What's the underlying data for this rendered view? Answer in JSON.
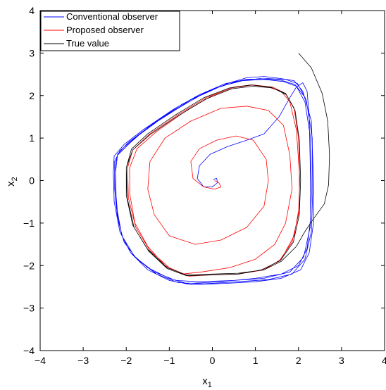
{
  "chart_data": {
    "type": "line",
    "xlabel": "x",
    "xlabel_sub": "1",
    "ylabel": "x",
    "ylabel_sub": "2",
    "xlim": [
      -4,
      4
    ],
    "ylim": [
      -4,
      4
    ],
    "xticks": [
      -4,
      -3,
      -2,
      -1,
      0,
      1,
      2,
      3,
      4
    ],
    "yticks": [
      -4,
      -3,
      -2,
      -1,
      0,
      1,
      2,
      3,
      4
    ],
    "grid": false,
    "legend_position": "top-left",
    "series": [
      {
        "name": "Conventional observer",
        "color": "#0000ff",
        "segments": [
          [
            [
              0.02,
              0.03
            ],
            [
              0.1,
              0.05
            ],
            [
              0.12,
              -0.05
            ],
            [
              0.0,
              -0.15
            ],
            [
              -0.2,
              -0.15
            ],
            [
              -0.35,
              0.05
            ],
            [
              -0.3,
              0.35
            ],
            [
              -0.05,
              0.62
            ],
            [
              0.35,
              0.8
            ],
            [
              0.8,
              0.95
            ],
            [
              1.2,
              1.1
            ],
            [
              1.55,
              1.5
            ],
            [
              1.8,
              1.95
            ],
            [
              1.95,
              2.2
            ],
            [
              2.1,
              2.3
            ],
            [
              2.2,
              2.1
            ],
            [
              2.25,
              1.5
            ],
            [
              2.28,
              0.0
            ],
            [
              2.28,
              -0.9
            ],
            [
              2.2,
              -1.6
            ],
            [
              2.0,
              -2.0
            ],
            [
              1.6,
              -2.2
            ],
            [
              1.0,
              -2.3
            ],
            [
              0.5,
              -2.35
            ],
            [
              -0.1,
              -2.4
            ],
            [
              -0.6,
              -2.42
            ],
            [
              -1.0,
              -2.3
            ],
            [
              -1.5,
              -2.05
            ],
            [
              -1.9,
              -1.7
            ],
            [
              -2.1,
              -1.3
            ],
            [
              -2.2,
              -0.8
            ],
            [
              -2.25,
              -0.2
            ],
            [
              -2.25,
              0.4
            ],
            [
              -2.2,
              0.6
            ],
            [
              -1.9,
              0.9
            ],
            [
              -1.5,
              1.25
            ],
            [
              -0.8,
              1.7
            ],
            [
              -0.2,
              2.05
            ],
            [
              0.4,
              2.3
            ],
            [
              0.8,
              2.42
            ],
            [
              1.2,
              2.45
            ],
            [
              1.6,
              2.4
            ],
            [
              1.9,
              2.35
            ],
            [
              2.1,
              2.1
            ],
            [
              2.3,
              1.4
            ],
            [
              2.35,
              0.0
            ],
            [
              2.35,
              -1.0
            ],
            [
              2.25,
              -1.7
            ],
            [
              2.05,
              -2.1
            ],
            [
              1.6,
              -2.3
            ],
            [
              1.0,
              -2.38
            ],
            [
              0.3,
              -2.42
            ],
            [
              -0.5,
              -2.45
            ],
            [
              -1.0,
              -2.35
            ],
            [
              -1.5,
              -2.1
            ],
            [
              -1.9,
              -1.7
            ],
            [
              -2.15,
              -1.2
            ],
            [
              -2.28,
              -0.5
            ],
            [
              -2.3,
              0.2
            ],
            [
              -2.28,
              0.58
            ],
            [
              -2.05,
              0.85
            ],
            [
              -1.6,
              1.2
            ],
            [
              -0.9,
              1.68
            ],
            [
              -0.3,
              2.02
            ],
            [
              0.3,
              2.28
            ],
            [
              0.8,
              2.38
            ],
            [
              1.3,
              2.4
            ],
            [
              1.7,
              2.38
            ],
            [
              1.98,
              2.28
            ],
            [
              2.18,
              1.9
            ],
            [
              2.32,
              1.0
            ],
            [
              2.33,
              -0.3
            ],
            [
              2.3,
              -1.2
            ],
            [
              2.15,
              -1.85
            ],
            [
              1.85,
              -2.2
            ],
            [
              1.3,
              -2.33
            ],
            [
              0.6,
              -2.38
            ],
            [
              -0.2,
              -2.43
            ],
            [
              -0.8,
              -2.4
            ],
            [
              -1.3,
              -2.2
            ],
            [
              -1.75,
              -1.85
            ],
            [
              -2.05,
              -1.45
            ],
            [
              -2.2,
              -0.9
            ],
            [
              -2.27,
              -0.2
            ],
            [
              -2.27,
              0.45
            ],
            [
              -2.15,
              0.7
            ],
            [
              -1.8,
              1.0
            ],
            [
              -1.2,
              1.45
            ],
            [
              -0.5,
              1.9
            ],
            [
              0.2,
              2.22
            ],
            [
              0.7,
              2.35
            ],
            [
              1.2,
              2.38
            ],
            [
              1.65,
              2.33
            ],
            [
              1.95,
              2.22
            ],
            [
              2.15,
              1.85
            ],
            [
              2.28,
              1.0
            ],
            [
              2.3,
              -0.3
            ],
            [
              2.27,
              -1.1
            ],
            [
              2.12,
              -1.8
            ],
            [
              1.8,
              -2.15
            ],
            [
              1.2,
              -2.3
            ],
            [
              0.5,
              -2.35
            ],
            [
              -0.3,
              -2.38
            ],
            [
              -0.85,
              -2.35
            ],
            [
              -1.35,
              -2.15
            ],
            [
              -1.8,
              -1.8
            ],
            [
              -2.1,
              -1.3
            ],
            [
              -2.23,
              -0.6
            ],
            [
              -2.25,
              0.2
            ],
            [
              -2.2,
              0.62
            ],
            [
              -1.95,
              0.9
            ],
            [
              -1.4,
              1.32
            ],
            [
              -0.7,
              1.8
            ],
            [
              0.0,
              2.15
            ],
            [
              0.6,
              2.34
            ],
            [
              1.1,
              2.4
            ],
            [
              1.6,
              2.36
            ],
            [
              1.92,
              2.26
            ],
            [
              2.12,
              2.0
            ]
          ]
        ]
      },
      {
        "name": "Proposed observer",
        "color": "#ff0000",
        "segments": [
          [
            [
              0.05,
              0.0
            ],
            [
              0.15,
              -0.05
            ],
            [
              0.2,
              -0.15
            ],
            [
              0.05,
              -0.2
            ],
            [
              -0.2,
              -0.15
            ],
            [
              -0.45,
              0.05
            ],
            [
              -0.5,
              0.45
            ],
            [
              -0.3,
              0.75
            ],
            [
              0.1,
              0.95
            ],
            [
              0.55,
              1.05
            ],
            [
              0.95,
              0.95
            ],
            [
              1.25,
              0.5
            ],
            [
              1.3,
              0.0
            ],
            [
              1.2,
              -0.6
            ],
            [
              0.8,
              -1.1
            ],
            [
              0.2,
              -1.4
            ],
            [
              -0.4,
              -1.5
            ],
            [
              -1.0,
              -1.3
            ],
            [
              -1.35,
              -0.8
            ],
            [
              -1.5,
              -0.2
            ],
            [
              -1.45,
              0.45
            ],
            [
              -1.1,
              1.0
            ],
            [
              -0.5,
              1.4
            ],
            [
              0.2,
              1.7
            ],
            [
              0.8,
              1.75
            ],
            [
              1.3,
              1.65
            ],
            [
              1.65,
              1.3
            ],
            [
              1.8,
              0.6
            ],
            [
              1.85,
              -0.2
            ],
            [
              1.7,
              -1.0
            ],
            [
              1.45,
              -1.5
            ],
            [
              1.0,
              -1.85
            ],
            [
              0.4,
              -2.05
            ],
            [
              -0.25,
              -2.15
            ],
            [
              -0.7,
              -2.2
            ],
            [
              -1.1,
              -2.0
            ],
            [
              -1.5,
              -1.55
            ],
            [
              -1.8,
              -1.0
            ],
            [
              -1.92,
              -0.3
            ],
            [
              -1.92,
              0.3
            ],
            [
              -1.75,
              0.75
            ],
            [
              -1.3,
              1.15
            ],
            [
              -0.6,
              1.65
            ],
            [
              0.0,
              2.0
            ],
            [
              0.5,
              2.2
            ],
            [
              0.9,
              2.25
            ],
            [
              1.3,
              2.2
            ],
            [
              1.6,
              2.1
            ],
            [
              1.8,
              1.85
            ],
            [
              1.95,
              1.2
            ],
            [
              2.02,
              0.2
            ],
            [
              2.02,
              -0.6
            ],
            [
              1.9,
              -1.3
            ],
            [
              1.6,
              -1.85
            ],
            [
              1.2,
              -2.1
            ],
            [
              0.6,
              -2.2
            ],
            [
              0.0,
              -2.22
            ],
            [
              -0.55,
              -2.25
            ],
            [
              -1.0,
              -2.05
            ],
            [
              -1.45,
              -1.65
            ],
            [
              -1.78,
              -1.1
            ],
            [
              -1.95,
              -0.4
            ],
            [
              -1.97,
              0.3
            ],
            [
              -1.85,
              0.72
            ],
            [
              -1.45,
              1.1
            ],
            [
              -0.8,
              1.55
            ],
            [
              -0.15,
              1.95
            ],
            [
              0.45,
              2.18
            ],
            [
              0.95,
              2.25
            ],
            [
              1.4,
              2.2
            ],
            [
              1.7,
              2.05
            ],
            [
              1.9,
              1.7
            ],
            [
              2.0,
              1.0
            ],
            [
              2.03,
              0.0
            ],
            [
              2.0,
              -0.8
            ],
            [
              1.85,
              -1.45
            ],
            [
              1.55,
              -1.9
            ],
            [
              1.1,
              -2.12
            ]
          ]
        ]
      },
      {
        "name": "True value",
        "color": "#000000",
        "segments": [
          [
            [
              2.0,
              3.0
            ],
            [
              2.3,
              2.65
            ],
            [
              2.55,
              2.05
            ],
            [
              2.68,
              1.4
            ],
            [
              2.72,
              0.6
            ],
            [
              2.7,
              -0.1
            ],
            [
              2.6,
              -0.55
            ],
            [
              2.35,
              -0.9
            ],
            [
              2.15,
              -1.2
            ],
            [
              1.95,
              -1.55
            ],
            [
              1.6,
              -1.9
            ],
            [
              1.2,
              -2.1
            ],
            [
              0.6,
              -2.18
            ],
            [
              0.0,
              -2.2
            ],
            [
              -0.6,
              -2.22
            ],
            [
              -1.05,
              -2.05
            ],
            [
              -1.5,
              -1.62
            ],
            [
              -1.85,
              -1.05
            ],
            [
              -2.0,
              -0.35
            ],
            [
              -2.0,
              0.3
            ],
            [
              -1.85,
              0.72
            ],
            [
              -1.45,
              1.08
            ],
            [
              -0.8,
              1.52
            ],
            [
              -0.15,
              1.92
            ],
            [
              0.45,
              2.16
            ],
            [
              0.95,
              2.22
            ],
            [
              1.4,
              2.18
            ],
            [
              1.72,
              2.02
            ],
            [
              1.92,
              1.65
            ],
            [
              2.02,
              0.95
            ],
            [
              2.05,
              0.0
            ],
            [
              2.02,
              -0.8
            ],
            [
              1.88,
              -1.45
            ],
            [
              1.58,
              -1.88
            ],
            [
              1.15,
              -2.1
            ],
            [
              0.6,
              -2.2
            ],
            [
              0.0,
              -2.22
            ],
            [
              -0.6,
              -2.24
            ],
            [
              -1.05,
              -2.07
            ],
            [
              -1.48,
              -1.66
            ],
            [
              -1.82,
              -1.1
            ],
            [
              -1.98,
              -0.4
            ],
            [
              -2.0,
              0.3
            ],
            [
              -1.88,
              0.74
            ],
            [
              -1.5,
              1.1
            ],
            [
              -0.85,
              1.55
            ],
            [
              -0.2,
              1.95
            ],
            [
              0.4,
              2.18
            ],
            [
              0.9,
              2.25
            ],
            [
              1.35,
              2.2
            ],
            [
              1.7,
              2.05
            ],
            [
              1.9,
              1.7
            ]
          ]
        ]
      }
    ]
  }
}
